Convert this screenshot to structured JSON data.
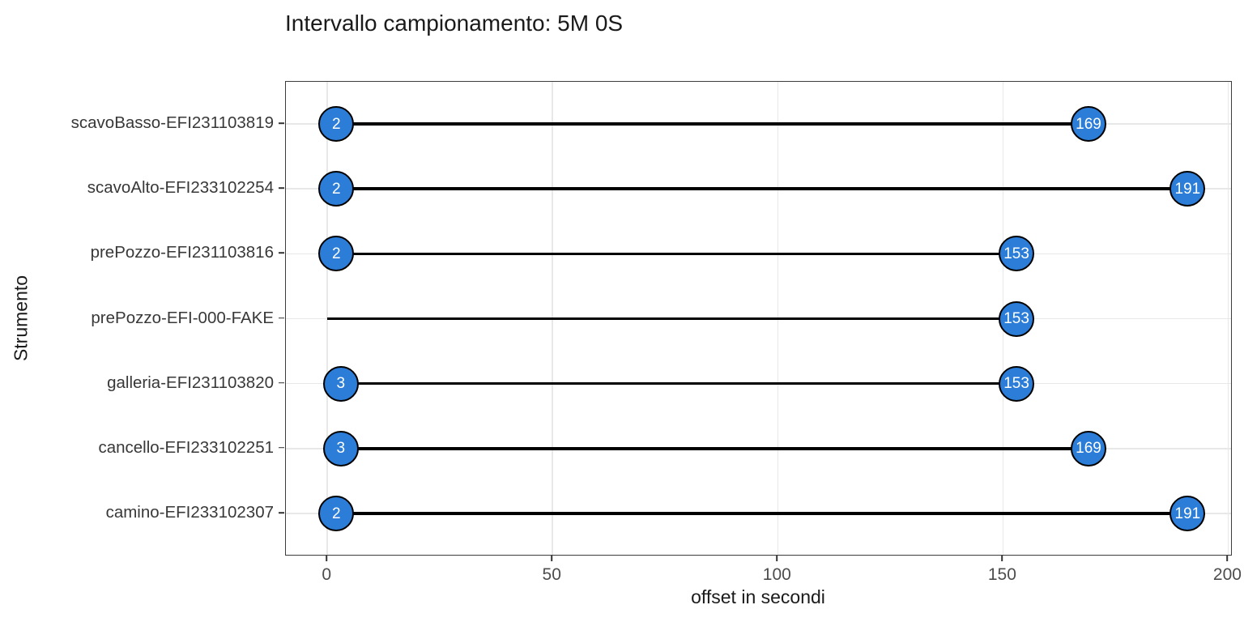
{
  "title": "Intervallo campionamento: 5M 0S",
  "chart_data": {
    "type": "scatter",
    "variant": "dumbbell",
    "title": "Intervallo campionamento: 5M 0S",
    "xlabel": "offset in secondi",
    "ylabel": "Strumento",
    "xticks": [
      0,
      50,
      100,
      150,
      200
    ],
    "xlim": [
      -9.2,
      201
    ],
    "grid": "major",
    "legend": "none",
    "rows": [
      {
        "label": "scavoBasso-EFI231103819",
        "start": 2,
        "end": 169
      },
      {
        "label": "scavoAlto-EFI233102254",
        "start": 2,
        "end": 191
      },
      {
        "label": "prePozzo-EFI231103816",
        "start": 2,
        "end": 153
      },
      {
        "label": "prePozzo-EFI-000-FAKE",
        "start": null,
        "line_start": 0,
        "end": 153
      },
      {
        "label": "galleria-EFI231103820",
        "start": 3,
        "end": 153
      },
      {
        "label": "cancello-EFI233102251",
        "start": 3,
        "end": 169
      },
      {
        "label": "camino-EFI233102307",
        "start": 2,
        "end": 191
      }
    ],
    "colors": {
      "point_fill": "#2b7dd8",
      "point_stroke": "#000000",
      "point_label": "#ffffff",
      "segment": "#000000",
      "grid": "#e8e8e8",
      "panel_border": "#3c3c3c",
      "axis_text": "#4d4d4d",
      "title_text": "#1a1a1a"
    }
  }
}
